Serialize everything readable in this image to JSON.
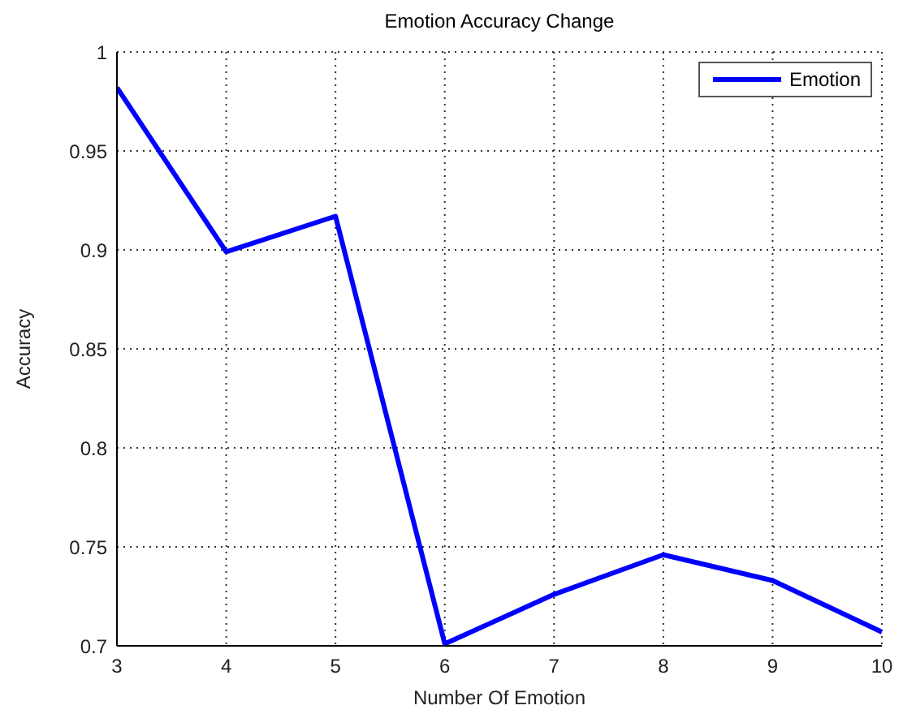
{
  "chart_data": {
    "type": "line",
    "title": "Emotion Accuracy Change",
    "xlabel": "Number Of Emotion",
    "ylabel": "Accuracy",
    "x": [
      3,
      4,
      5,
      6,
      7,
      8,
      9,
      10
    ],
    "series": [
      {
        "name": "Emotion",
        "color": "#0000ff",
        "values": [
          0.982,
          0.899,
          0.917,
          0.701,
          0.726,
          0.746,
          0.733,
          0.707
        ]
      }
    ],
    "xlim": [
      3,
      10
    ],
    "xticks": [
      3,
      4,
      5,
      6,
      7,
      8,
      9,
      10
    ],
    "ylim": [
      0.7,
      1
    ],
    "yticks": [
      0.7,
      0.75,
      0.8,
      0.85,
      0.9,
      0.95,
      1
    ],
    "grid": true,
    "legend": "top right",
    "marker": "none",
    "line_style": "solid"
  }
}
